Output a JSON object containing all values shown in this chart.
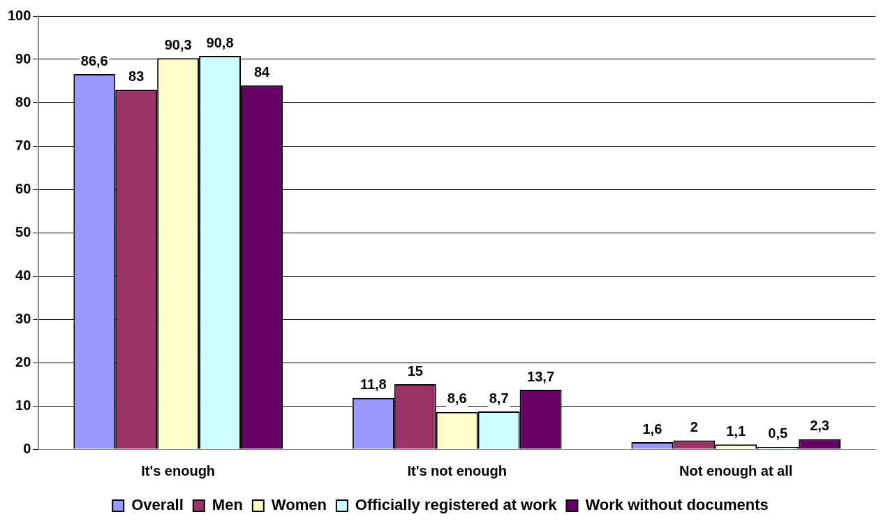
{
  "chart_data": {
    "type": "bar",
    "categories": [
      "It's enough",
      "It's not enough",
      "Not enough at all"
    ],
    "series": [
      {
        "name": "Overall",
        "color": "#9999ff",
        "values": [
          86.6,
          11.8,
          1.6
        ],
        "value_labels": [
          "86,6",
          "11,8",
          "1,6"
        ]
      },
      {
        "name": "Men",
        "color": "#993366",
        "values": [
          83,
          15,
          2
        ],
        "value_labels": [
          "83",
          "15",
          "2"
        ]
      },
      {
        "name": "Women",
        "color": "#ffffcc",
        "values": [
          90.3,
          8.6,
          1.1
        ],
        "value_labels": [
          "90,3",
          "8,6",
          "1,1"
        ]
      },
      {
        "name": "Officially registered at work",
        "color": "#ccffff",
        "values": [
          90.8,
          8.7,
          0.5
        ],
        "value_labels": [
          "90,8",
          "8,7",
          "0,5"
        ]
      },
      {
        "name": "Work without documents",
        "color": "#660066",
        "values": [
          84,
          13.7,
          2.3
        ],
        "value_labels": [
          "84",
          "13,7",
          "2,3"
        ]
      }
    ],
    "ylim": [
      0,
      100
    ],
    "yticks": [
      0,
      10,
      20,
      30,
      40,
      50,
      60,
      70,
      80,
      90,
      100
    ],
    "grid": "y",
    "legend": "bottom"
  }
}
